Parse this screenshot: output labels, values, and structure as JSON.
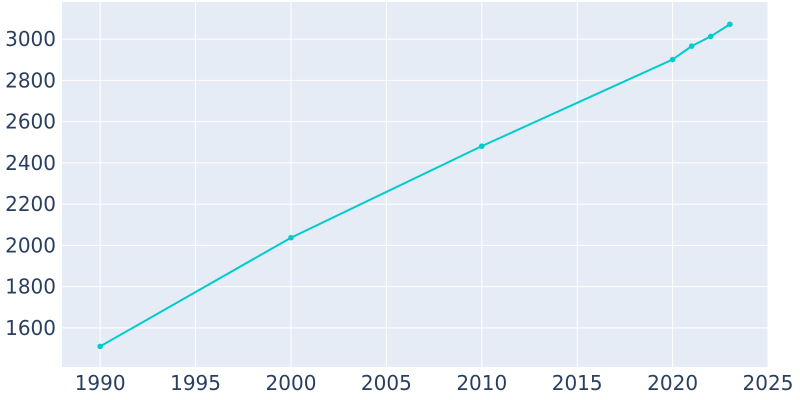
{
  "chart_data": {
    "type": "line",
    "title": "",
    "xlabel": "",
    "ylabel": "",
    "xlim": [
      1988,
      2025
    ],
    "ylim": [
      1410,
      3180
    ],
    "x_ticks": [
      1990,
      1995,
      2000,
      2005,
      2010,
      2015,
      2020,
      2025
    ],
    "y_ticks": [
      1600,
      1800,
      2000,
      2200,
      2400,
      2600,
      2800,
      3000
    ],
    "grid": true,
    "legend": "none",
    "colors": {
      "plot_bg": "#e5ecf6",
      "grid": "#ffffff",
      "series": "#00cccc",
      "text": "#2a3f5f"
    },
    "series": [
      {
        "x": [
          1990,
          2000,
          2010,
          2020,
          2021,
          2022,
          2023
        ],
        "y": [
          1510,
          2037,
          2481,
          2901,
          2966,
          3013,
          3072
        ]
      }
    ]
  }
}
